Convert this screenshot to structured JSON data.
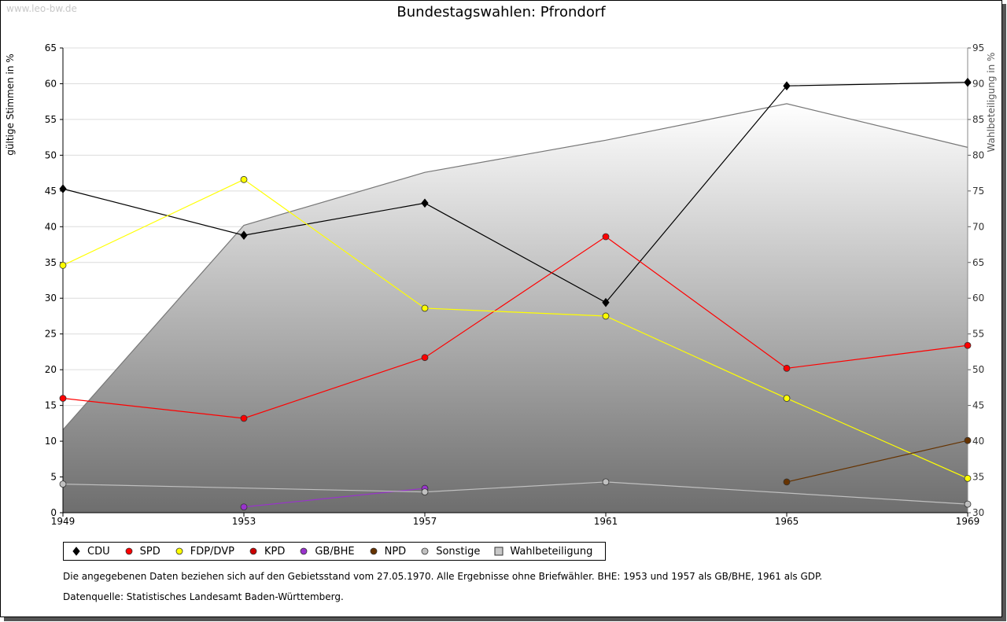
{
  "watermark": "www.leo-bw.de",
  "chart_data": {
    "type": "line",
    "title": "Bundestagswahlen: Pfrondorf",
    "x": [
      "1949",
      "1953",
      "1957",
      "1961",
      "1965",
      "1969"
    ],
    "ylabel": "gültige Stimmen in %",
    "ylabel_right": "Wahlbeteiligung in %",
    "ylim": [
      0,
      65
    ],
    "yticks": [
      0,
      5,
      10,
      15,
      20,
      25,
      30,
      35,
      40,
      45,
      50,
      55,
      60,
      65
    ],
    "ylim_right": [
      30,
      95
    ],
    "yticks_right": [
      30,
      35,
      40,
      45,
      50,
      55,
      60,
      65,
      70,
      75,
      80,
      85,
      90,
      95
    ],
    "grid": true,
    "legend_position": "bottom",
    "area_series": {
      "name": "Wahlbeteiligung",
      "axis": "right",
      "values": [
        41.6,
        70.2,
        77.6,
        82.1,
        87.2,
        81.1
      ],
      "color": "#808080"
    },
    "series": [
      {
        "name": "CDU",
        "color": "#000000",
        "values": [
          45.3,
          38.8,
          43.3,
          29.4,
          59.7,
          60.2
        ]
      },
      {
        "name": "SPD",
        "color": "#ff0000",
        "values": [
          16.0,
          13.2,
          21.7,
          38.6,
          20.2,
          23.4
        ]
      },
      {
        "name": "FDP/DVP",
        "color": "#ffff00",
        "values": [
          34.6,
          46.6,
          28.6,
          27.5,
          16.0,
          4.8
        ]
      },
      {
        "name": "KPD",
        "color": "#cc0000",
        "values": [
          null,
          null,
          null,
          null,
          null,
          null
        ]
      },
      {
        "name": "GB/BHE",
        "color": "#9933cc",
        "values": [
          null,
          0.8,
          3.4,
          null,
          null,
          null
        ]
      },
      {
        "name": "NPD",
        "color": "#663300",
        "values": [
          null,
          null,
          null,
          null,
          4.3,
          10.1
        ]
      },
      {
        "name": "Sonstige",
        "color": "#c0c0c0",
        "values": [
          4.0,
          null,
          2.9,
          4.3,
          null,
          1.2
        ]
      }
    ]
  },
  "footnotes": {
    "note": "Die angegebenen Daten beziehen sich auf den Gebietsstand vom 27.05.1970. Alle Ergebnisse ohne Briefwähler. BHE: 1953 und 1957 als GB/BHE, 1961 als GDP.",
    "source": "Datenquelle: Statistisches Landesamt Baden-Württemberg."
  }
}
